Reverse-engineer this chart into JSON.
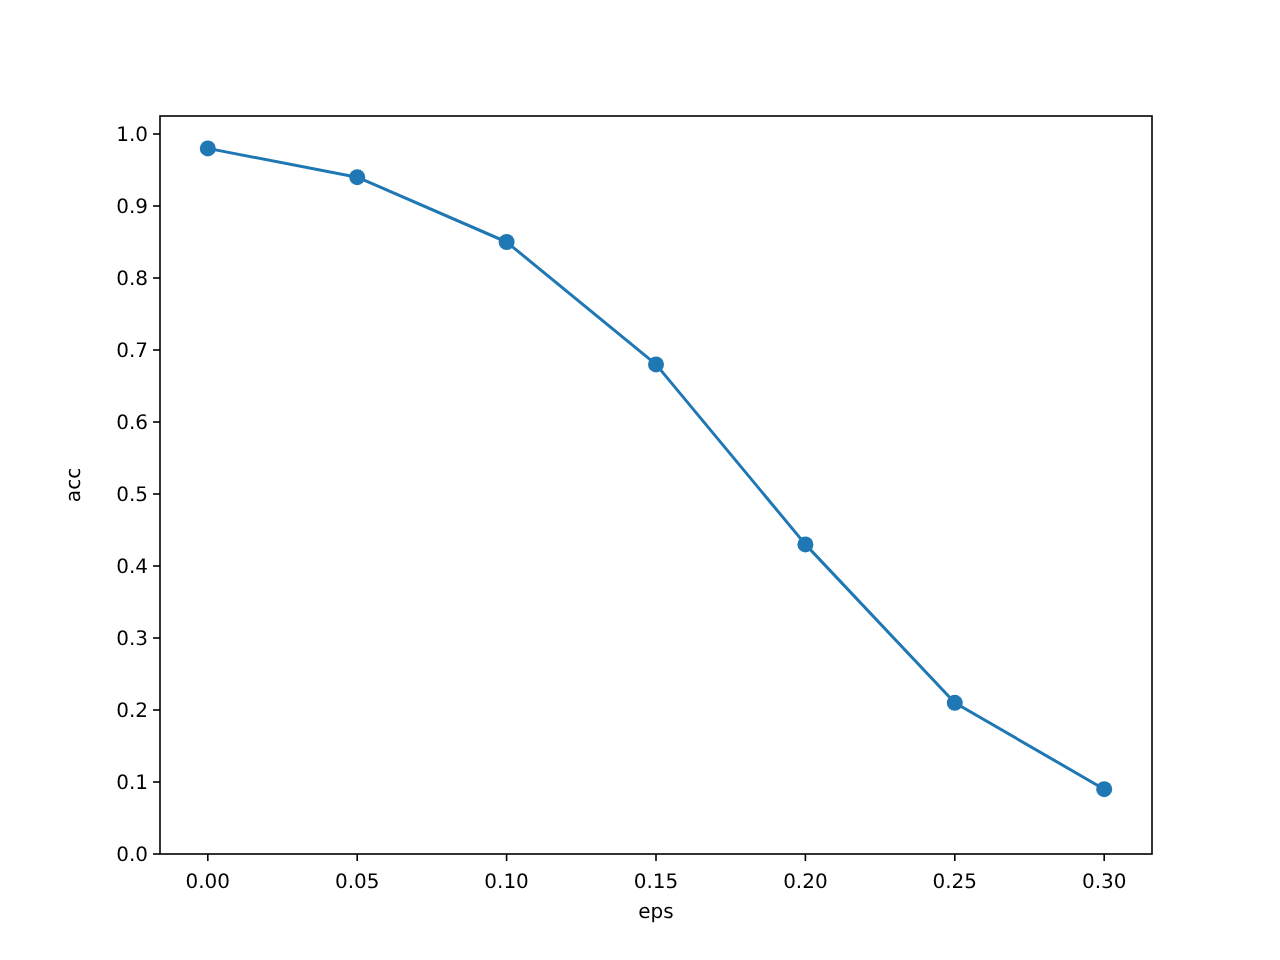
{
  "chart_data": {
    "type": "line",
    "xlabel": "eps",
    "ylabel": "acc",
    "x": [
      0,
      0.05,
      0.1,
      0.15,
      0.2,
      0.25,
      0.3
    ],
    "series": [
      {
        "color": "#1f77b4",
        "values": [
          0.98,
          0.94,
          0.85,
          0.68,
          0.43,
          0.21,
          0.09
        ]
      }
    ],
    "xlim": [
      -0.016,
      0.316
    ],
    "xticks": [
      {
        "value": 0,
        "label": "0.00"
      },
      {
        "value": 0.05,
        "label": "0.05"
      },
      {
        "value": 0.1,
        "label": "0.10"
      },
      {
        "value": 0.15,
        "label": "0.15"
      },
      {
        "value": 0.2,
        "label": "0.20"
      },
      {
        "value": 0.25,
        "label": "0.25"
      },
      {
        "value": 0.3,
        "label": "0.30"
      }
    ],
    "ylim": [
      0,
      1.025
    ],
    "yticks": [
      {
        "value": 0,
        "label": "0.0"
      },
      {
        "value": 0.1,
        "label": "0.1"
      },
      {
        "value": 0.2,
        "label": "0.2"
      },
      {
        "value": 0.3,
        "label": "0.3"
      },
      {
        "value": 0.4,
        "label": "0.4"
      },
      {
        "value": 0.5,
        "label": "0.5"
      },
      {
        "value": 0.6,
        "label": "0.6"
      },
      {
        "value": 0.7,
        "label": "0.7"
      },
      {
        "value": 0.8,
        "label": "0.8"
      },
      {
        "value": 0.9,
        "label": "0.9"
      },
      {
        "value": 1,
        "label": "1.0"
      }
    ],
    "marker": "circle",
    "grid": false
  }
}
